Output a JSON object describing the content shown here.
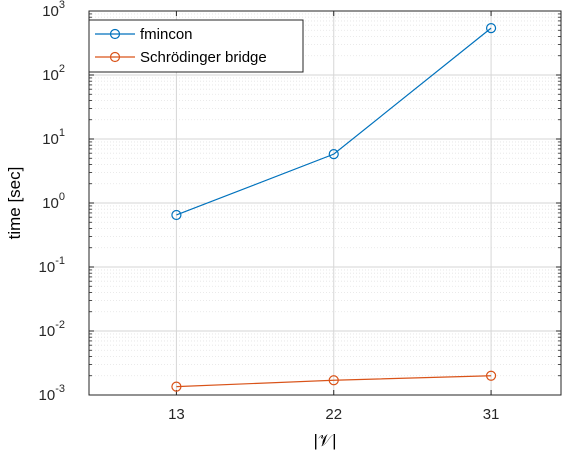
{
  "chart_data": {
    "type": "line",
    "x_scale": "category",
    "y_scale": "log",
    "categories": [
      "13",
      "22",
      "31"
    ],
    "x_values": [
      13,
      22,
      31
    ],
    "xlabel": "|𝒱|",
    "ylabel": "time [sec]",
    "ylim": [
      0.001,
      1000
    ],
    "y_major_ticks": [
      0.001,
      0.01,
      0.1,
      1,
      10,
      100,
      1000
    ],
    "y_tick_labels": [
      {
        "base": "10",
        "exp": "-3"
      },
      {
        "base": "10",
        "exp": "-2"
      },
      {
        "base": "10",
        "exp": "-1"
      },
      {
        "base": "10",
        "exp": "0"
      },
      {
        "base": "10",
        "exp": "1"
      },
      {
        "base": "10",
        "exp": "2"
      },
      {
        "base": "10",
        "exp": "3"
      }
    ],
    "grid": true,
    "minor_grid": true,
    "legend_position": "top-left",
    "series": [
      {
        "name": "fmincon",
        "color": "#0072BD",
        "marker": "circle",
        "values": [
          0.65,
          5.8,
          540
        ]
      },
      {
        "name": "Schrödinger bridge",
        "color": "#D95319",
        "marker": "circle",
        "values": [
          0.00135,
          0.0017,
          0.002
        ]
      }
    ]
  }
}
